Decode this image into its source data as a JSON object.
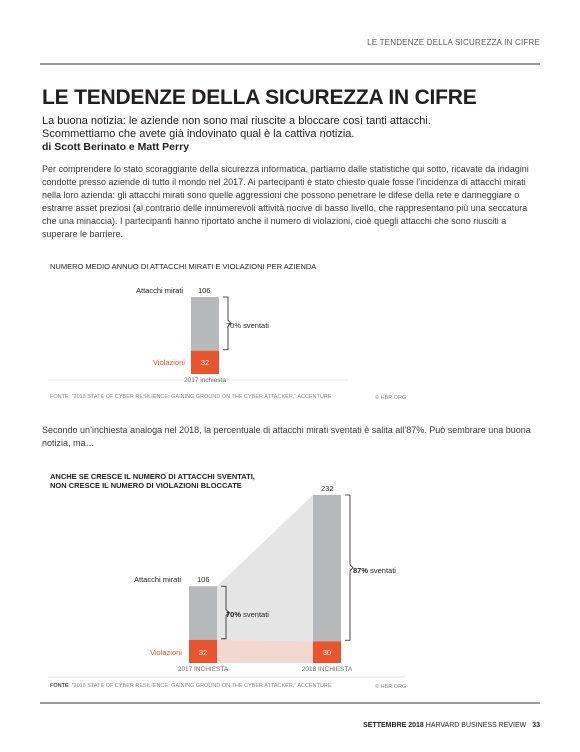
{
  "header": {
    "running_head": "LE TENDENZE DELLA SICUREZZA IN CIFRE"
  },
  "article": {
    "title": "LE TENDENZE DELLA SICUREZZA IN CIFRE",
    "deck_line1": "La buona notizia: le aziende non sono mai riuscite a bloccare così tanti attacchi.",
    "deck_line2": "Scommettiamo che avete già indovinato qual è la cattiva notizia.",
    "byline": "di Scott Berinato e Matt Perry",
    "paragraph1": "Per comprendere lo stato scoraggiante della sicurezza informatica, partiamo dalle statistiche qui sotto, ricavate da indagini condotte presso aziende di tutto il mondo nel 2017. Ai partecipanti è stato chiesto quale fosse l’incidenza di attacchi mirati nella loro azienda: gli attacchi mirati sono quelle aggressioni che possono penetrare le difese della rete e danneggiare o estrarre asset preziosi (al contrario delle innumerevoli attività nocive di basso livello, che rappresentano più una seccatura che una minaccia). I partecipanti hanno riportato anche il numero di violazioni, cioè quegli attacchi che sono riusciti a superare le barriere.",
    "paragraph2": "Secondo un’inchiesta analoga nel 2018, la percentuale di attacchi mirati sventati è salita all’87%. Può sembrare una buona notizia, ma…"
  },
  "chart_data": [
    {
      "type": "bar",
      "title": "NUMERO MEDIO ANNUO DI ATTACCHI MIRATI E VIOLAZIONI PER AZIENDA",
      "categories": [
        "2017 inchiesta"
      ],
      "series": [
        {
          "name": "Attacchi mirati",
          "values": [
            106
          ]
        },
        {
          "name": "Violazioni",
          "values": [
            32
          ]
        }
      ],
      "annotation_pct": "70%",
      "annotation_word": " sventati",
      "source": "FONTE: “2018 STATE OF CYBER RESILIENCE: GAINING GROUND ON THE CYBER ATTACKER,” ACCENTURE",
      "credit": "© HBR.ORG",
      "ylim": [
        0,
        106
      ],
      "colors": {
        "attacks": "#b7b8ba",
        "breaches": "#e8542e"
      }
    },
    {
      "type": "bar",
      "title_line1": "ANCHE SE CRESCE IL NUMERO DI ATTACCHI SVENTATI,",
      "title_line2": "NON CRESCE IL NUMERO DI VIOLAZIONI BLOCCATE",
      "categories": [
        "2017 INCHIESTA",
        "2018 INCHIESTA"
      ],
      "series": [
        {
          "name": "Attacchi mirati",
          "values": [
            106,
            232
          ]
        },
        {
          "name": "Violazioni",
          "values": [
            32,
            30
          ]
        }
      ],
      "annotations": [
        {
          "pct": "70%",
          "word": " sventati"
        },
        {
          "pct": "87%",
          "word": " sventati"
        }
      ],
      "source_label": "FONTE",
      "source_text": ": “2018 STATE OF CYBER RESILIENCE: GAINING GROUND ON THE CYBER ATTACKER,” ACCENTURE",
      "credit": "© HBR.ORG",
      "ylim": [
        0,
        232
      ],
      "colors": {
        "attacks": "#b7b8ba",
        "breaches": "#e8542e",
        "band": "#e5e5e5",
        "breach_band": "#f3d8cf"
      }
    }
  ],
  "footer": {
    "issue": "SETTEMBRE 2018",
    "magazine": " HARVARD BUSINESS REVIEW",
    "page": "33"
  }
}
